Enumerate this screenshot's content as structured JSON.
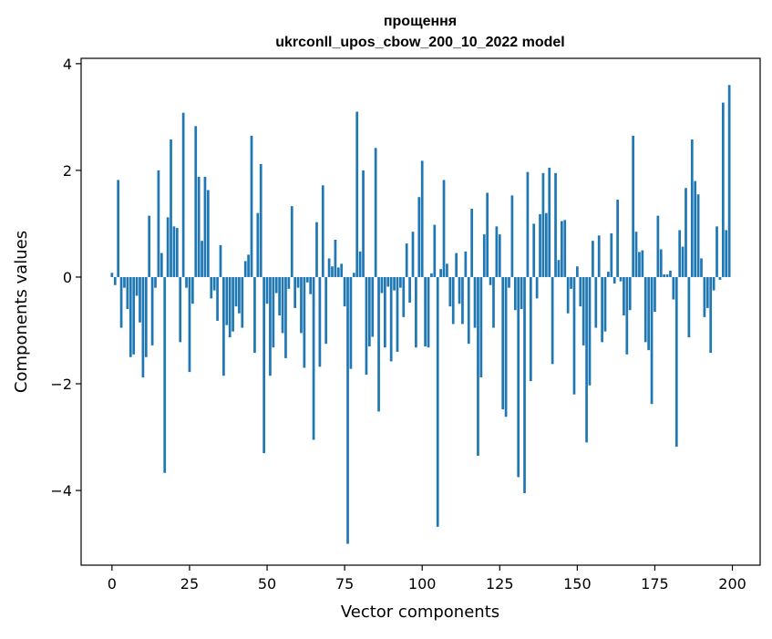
{
  "chart_data": {
    "type": "bar",
    "title": "прощення",
    "subtitle": "ukrconll_upos_cbow_200_10_2022 model",
    "xlabel": "Vector components",
    "ylabel": "Components values",
    "xlim": [
      -9.95,
      208.95
    ],
    "ylim": [
      -5.4,
      4.1
    ],
    "xticks": [
      0,
      25,
      50,
      75,
      100,
      125,
      150,
      175,
      200
    ],
    "yticks": [
      4,
      2,
      0,
      -2,
      -4
    ],
    "xtick_labels": [
      "0",
      "25",
      "50",
      "75",
      "100",
      "125",
      "150",
      "175",
      "200"
    ],
    "ytick_labels": [
      "4",
      "2",
      "0",
      "−2",
      "−4"
    ],
    "grid": false,
    "bar_color": "#1f77b4",
    "x": [
      0,
      1,
      2,
      3,
      4,
      5,
      6,
      7,
      8,
      9,
      10,
      11,
      12,
      13,
      14,
      15,
      16,
      17,
      18,
      19,
      20,
      21,
      22,
      23,
      24,
      25,
      26,
      27,
      28,
      29,
      30,
      31,
      32,
      33,
      34,
      35,
      36,
      37,
      38,
      39,
      40,
      41,
      42,
      43,
      44,
      45,
      46,
      47,
      48,
      49,
      50,
      51,
      52,
      53,
      54,
      55,
      56,
      57,
      58,
      59,
      60,
      61,
      62,
      63,
      64,
      65,
      66,
      67,
      68,
      69,
      70,
      71,
      72,
      73,
      74,
      75,
      76,
      77,
      78,
      79,
      80,
      81,
      82,
      83,
      84,
      85,
      86,
      87,
      88,
      89,
      90,
      91,
      92,
      93,
      94,
      95,
      96,
      97,
      98,
      99,
      100,
      101,
      102,
      103,
      104,
      105,
      106,
      107,
      108,
      109,
      110,
      111,
      112,
      113,
      114,
      115,
      116,
      117,
      118,
      119,
      120,
      121,
      122,
      123,
      124,
      125,
      126,
      127,
      128,
      129,
      130,
      131,
      132,
      133,
      134,
      135,
      136,
      137,
      138,
      139,
      140,
      141,
      142,
      143,
      144,
      145,
      146,
      147,
      148,
      149,
      150,
      151,
      152,
      153,
      154,
      155,
      156,
      157,
      158,
      159,
      160,
      161,
      162,
      163,
      164,
      165,
      166,
      167,
      168,
      169,
      170,
      171,
      172,
      173,
      174,
      175,
      176,
      177,
      178,
      179,
      180,
      181,
      182,
      183,
      184,
      185,
      186,
      187,
      188,
      189,
      190,
      191,
      192,
      193,
      194,
      195,
      196,
      197,
      198,
      199
    ],
    "values": [
      0.08,
      -0.15,
      1.82,
      -0.95,
      -0.2,
      -0.6,
      -1.5,
      -1.45,
      -0.35,
      -0.85,
      -1.88,
      -1.5,
      1.15,
      -1.28,
      -0.2,
      2.0,
      0.45,
      -3.67,
      1.12,
      2.58,
      0.95,
      0.92,
      -1.22,
      3.08,
      -0.2,
      -1.78,
      -0.5,
      2.83,
      1.88,
      0.68,
      1.88,
      1.63,
      -0.4,
      -0.25,
      -0.82,
      0.6,
      -1.85,
      -0.9,
      -1.13,
      -1.02,
      -0.55,
      -0.68,
      -0.95,
      0.3,
      0.42,
      2.65,
      -1.42,
      1.2,
      2.12,
      -3.3,
      -0.5,
      -1.85,
      -1.32,
      -0.3,
      -0.72,
      -1.05,
      -1.52,
      -0.22,
      1.33,
      -0.58,
      -0.2,
      -1.05,
      -1.7,
      -0.1,
      -0.32,
      -3.05,
      1.03,
      -1.68,
      1.72,
      -1.25,
      0.35,
      0.2,
      0.7,
      0.18,
      0.25,
      -0.55,
      -5.0,
      -1.72,
      0.08,
      3.1,
      0.48,
      2.0,
      -1.83,
      -1.3,
      -1.12,
      2.42,
      -2.52,
      -0.3,
      -1.32,
      -0.18,
      -1.58,
      -0.25,
      -1.4,
      -0.2,
      -0.75,
      0.63,
      -0.48,
      0.85,
      -1.32,
      1.5,
      2.18,
      -1.3,
      -1.32,
      0.07,
      0.98,
      -4.68,
      0.15,
      1.82,
      0.25,
      -0.55,
      -0.88,
      0.45,
      -0.5,
      -0.88,
      0.48,
      -1.25,
      1.28,
      -0.95,
      -3.35,
      -1.88,
      0.8,
      1.58,
      -0.15,
      -0.95,
      0.95,
      0.8,
      -2.48,
      -2.62,
      -0.2,
      1.53,
      -0.62,
      -3.75,
      -0.6,
      -4.05,
      1.97,
      -1.95,
      1.0,
      -0.4,
      1.18,
      1.95,
      1.2,
      2.05,
      -1.63,
      1.95,
      0.32,
      1.05,
      1.07,
      -0.68,
      -0.22,
      -2.2,
      0.2,
      -0.55,
      -1.28,
      -3.1,
      -2.03,
      0.68,
      -0.95,
      0.78,
      -1.22,
      -1.02,
      0.1,
      0.82,
      -0.12,
      1.45,
      -0.08,
      -0.72,
      -1.45,
      -0.62,
      2.65,
      0.85,
      0.47,
      0.5,
      -1.22,
      -1.37,
      -2.38,
      -0.65,
      1.15,
      0.52,
      0.05,
      0.05,
      0.12,
      -0.42,
      -3.18,
      0.88,
      0.57,
      1.67,
      -1.13,
      2.58,
      1.8,
      1.55,
      0.35,
      -0.75,
      -0.58,
      -1.42,
      -0.25,
      0.95,
      -0.05,
      3.27,
      0.88,
      3.6
    ]
  }
}
